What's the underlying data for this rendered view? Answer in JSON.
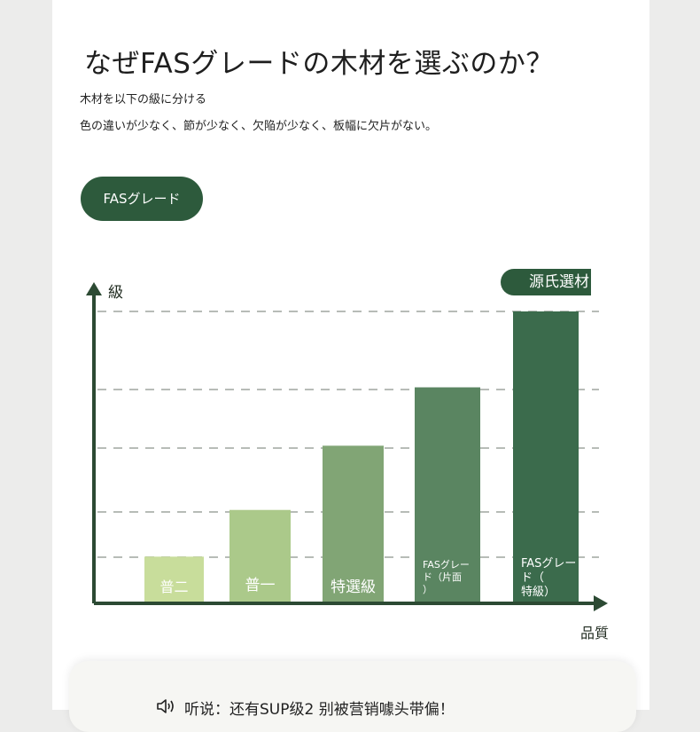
{
  "header": {
    "title": "なぜFASグレードの木材を選ぶのか？",
    "subtitle_1": "木材を以下の級に分ける",
    "subtitle_2": "色の違いが少なく、節が少なく、欠陥が少なく、板幅に欠片がない。"
  },
  "badge": {
    "label": "FASグレード"
  },
  "brand_tag": {
    "label": "源氏選材"
  },
  "bottom": {
    "speaker_icon": "speaker-icon",
    "text": "听说：还有SUP级2 别被营销噱头带偏！"
  },
  "chart_data": {
    "type": "bar",
    "xlabel": "品質",
    "ylabel": "級",
    "ylim": [
      0,
      5
    ],
    "grid": true,
    "categories": [
      "普二",
      "普一",
      "特選級",
      "FASグレード（片面）",
      "FASグレード（特級）"
    ],
    "category_lines": [
      [
        "普二"
      ],
      [
        "普一"
      ],
      [
        "特選級"
      ],
      [
        "FASグレー",
        "ド（片面",
        "）"
      ],
      [
        "FASグレー",
        "ド（",
        "特級）"
      ]
    ],
    "values": [
      0.8,
      1.6,
      2.7,
      3.7,
      5.0
    ],
    "colors": [
      "#c8dd9b",
      "#abc98a",
      "#81a575",
      "#5a8561",
      "#3b6b4c"
    ],
    "axis_color": "#2c4a33",
    "grid_color": "#b7bcb7"
  }
}
